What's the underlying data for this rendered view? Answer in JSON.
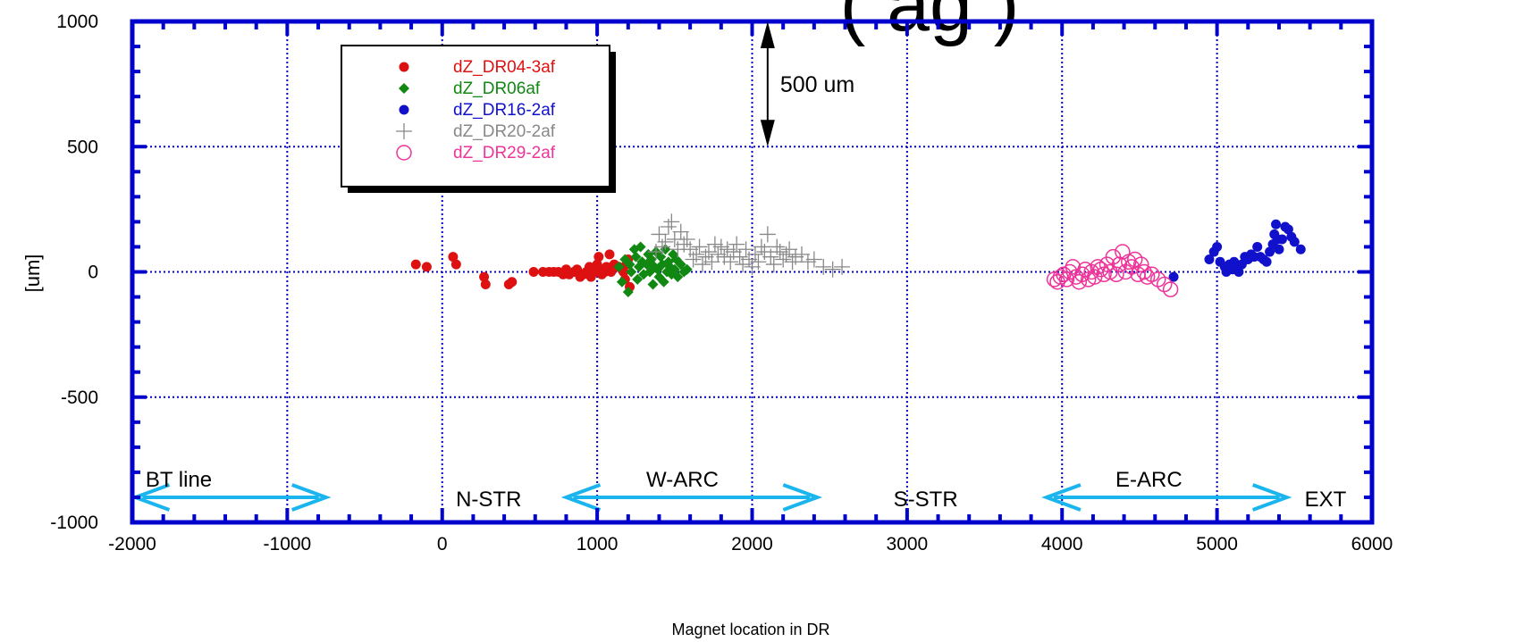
{
  "chart_data": {
    "type": "scatter",
    "title": "",
    "title_fragment": "( ag )",
    "xlabel": "Magnet location in DR",
    "ylabel": "[um]",
    "xlim": [
      -2000,
      6000
    ],
    "ylim": [
      -1000,
      1000
    ],
    "xticks": [
      -2000,
      -1000,
      0,
      1000,
      2000,
      3000,
      4000,
      5000,
      6000
    ],
    "yticks": [
      1000,
      500,
      0,
      -500,
      -1000
    ],
    "grid": true,
    "legend_position": "top-left",
    "colors": {
      "frame": "#0000cc",
      "grid": "#0000cc",
      "arrows": "#1ab4ee"
    },
    "annotation": {
      "text": "500 um",
      "x": 2100,
      "y_from": 1000,
      "y_to": 500
    },
    "regions": [
      {
        "label": "BT line",
        "x": -1700
      },
      {
        "label": "N-STR",
        "x": 300
      },
      {
        "label": "W-ARC",
        "x": 1550
      },
      {
        "label": "S-STR",
        "x": 3120
      },
      {
        "label": "E-ARC",
        "x": 4560
      },
      {
        "label": "EXT",
        "x": 5700
      }
    ],
    "arrows": [
      {
        "x1": -1980,
        "x2": -750,
        "y": -900
      },
      {
        "x1": 800,
        "x2": 2420,
        "y": -900
      },
      {
        "x1": 3900,
        "x2": 5450,
        "y": -900
      }
    ],
    "series": [
      {
        "name": "dZ_DR04-3af",
        "color": "#dd1111",
        "marker": "circle",
        "x": [
          -170,
          -100,
          70,
          90,
          270,
          280,
          430,
          450,
          590,
          650,
          690,
          720,
          750,
          780,
          800,
          820,
          850,
          870,
          890,
          910,
          930,
          950,
          960,
          970,
          990,
          1000,
          1010,
          1020,
          1030,
          1050,
          1060,
          1080,
          1090,
          1110,
          1120,
          1140,
          1160,
          1170,
          1180,
          1190,
          1200,
          1210
        ],
        "y": [
          30,
          20,
          60,
          30,
          -20,
          -50,
          -50,
          -40,
          0,
          0,
          0,
          0,
          0,
          -10,
          10,
          -10,
          0,
          10,
          -20,
          -10,
          0,
          20,
          -20,
          10,
          0,
          30,
          60,
          10,
          -10,
          0,
          20,
          70,
          0,
          30,
          20,
          20,
          10,
          0,
          -30,
          30,
          50,
          -60
        ]
      },
      {
        "name": "dZ_DR06af",
        "color": "#118811",
        "marker": "diamond",
        "x": [
          1140,
          1160,
          1180,
          1200,
          1210,
          1220,
          1240,
          1250,
          1260,
          1270,
          1280,
          1290,
          1300,
          1320,
          1330,
          1340,
          1350,
          1360,
          1370,
          1380,
          1390,
          1400,
          1410,
          1420,
          1430,
          1440,
          1450,
          1460,
          1470,
          1480,
          1490,
          1500,
          1510,
          1520,
          1540,
          1560,
          1580
        ],
        "y": [
          20,
          -40,
          50,
          -80,
          30,
          0,
          90,
          60,
          -30,
          20,
          100,
          40,
          -10,
          30,
          70,
          0,
          50,
          -50,
          20,
          80,
          10,
          -20,
          60,
          30,
          -40,
          90,
          0,
          40,
          20,
          -10,
          70,
          10,
          50,
          -20,
          30,
          0,
          10
        ]
      },
      {
        "name": "dZ_DR16-2af",
        "color": "#1111cc",
        "marker": "circle",
        "x": [
          4720,
          4950,
          4980,
          5000,
          5020,
          5050,
          5060,
          5080,
          5100,
          5110,
          5120,
          5140,
          5160,
          5180,
          5200,
          5220,
          5240,
          5260,
          5280,
          5300,
          5320,
          5340,
          5360,
          5370,
          5380,
          5390,
          5400,
          5420,
          5440,
          5460,
          5480,
          5500,
          5540
        ],
        "y": [
          -20,
          50,
          80,
          100,
          40,
          20,
          0,
          30,
          10,
          40,
          20,
          0,
          30,
          60,
          50,
          70,
          60,
          100,
          60,
          50,
          40,
          80,
          110,
          150,
          190,
          130,
          90,
          130,
          180,
          170,
          140,
          120,
          90
        ]
      },
      {
        "name": "dZ_DR20-2af",
        "color": "#888888",
        "marker": "plus",
        "x": [
          1380,
          1400,
          1420,
          1440,
          1460,
          1480,
          1500,
          1520,
          1540,
          1560,
          1580,
          1600,
          1620,
          1640,
          1660,
          1680,
          1700,
          1720,
          1740,
          1760,
          1780,
          1800,
          1820,
          1840,
          1860,
          1880,
          1900,
          1920,
          1940,
          1960,
          1980,
          2000,
          2020,
          2040,
          2060,
          2080,
          2100,
          2120,
          2140,
          2160,
          2180,
          2200,
          2220,
          2240,
          2260,
          2280,
          2320,
          2360,
          2400,
          2460,
          2520,
          2580
        ],
        "y": [
          80,
          150,
          100,
          120,
          180,
          200,
          130,
          90,
          160,
          110,
          130,
          90,
          50,
          70,
          100,
          30,
          60,
          80,
          40,
          110,
          70,
          100,
          60,
          90,
          40,
          80,
          110,
          60,
          30,
          90,
          50,
          20,
          70,
          40,
          100,
          80,
          150,
          60,
          30,
          100,
          80,
          50,
          70,
          90,
          40,
          60,
          70,
          40,
          50,
          20,
          10,
          20
        ]
      },
      {
        "name": "dZ_DR29-2af",
        "color": "#ee3399",
        "marker": "open-circle",
        "x": [
          3950,
          3970,
          3990,
          4010,
          4030,
          4050,
          4070,
          4090,
          4110,
          4130,
          4150,
          4170,
          4190,
          4210,
          4230,
          4250,
          4270,
          4290,
          4310,
          4330,
          4350,
          4370,
          4390,
          4410,
          4430,
          4450,
          4470,
          4490,
          4510,
          4530,
          4550,
          4580,
          4620,
          4660,
          4700
        ],
        "y": [
          -30,
          -40,
          -20,
          -10,
          -30,
          0,
          20,
          -20,
          -40,
          -10,
          10,
          -30,
          0,
          -20,
          20,
          10,
          -10,
          30,
          0,
          60,
          -10,
          30,
          80,
          0,
          40,
          20,
          50,
          -10,
          30,
          0,
          -20,
          -10,
          -30,
          -50,
          -70
        ]
      }
    ]
  }
}
